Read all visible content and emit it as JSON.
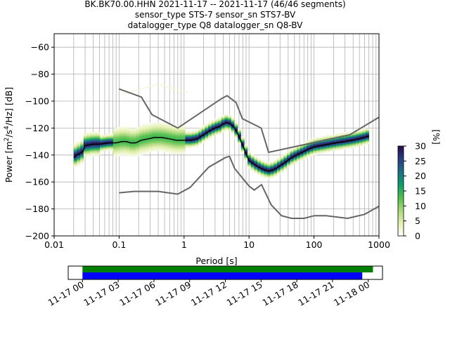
{
  "chart_data": [
    {
      "type": "heatmap",
      "title_lines": [
        "BK.BK70.00.HHN   2021-11-17 -- 2021-11-17  (46/46 segments)",
        "sensor_type STS-7 sensor_sn STS7-BV",
        "datalogger_type Q8 datalogger_sn Q8-BV"
      ],
      "xlabel": "Period [s]",
      "ylabel": "Power [m²/s⁴/Hz] [dB]",
      "ylabel_parts": {
        "prefix": "Power [m",
        "sup1": "2",
        "mid": "/s",
        "sup2": "4",
        "suffix": "/Hz] [dB]"
      },
      "x_scale": "log",
      "xlim": [
        0.01,
        1000
      ],
      "ylim": [
        -200,
        -50
      ],
      "x_ticks": [
        0.01,
        0.1,
        1,
        10,
        100,
        1000
      ],
      "x_tick_labels": [
        "0.01",
        "0.1",
        "1",
        "10",
        "100",
        "1000"
      ],
      "y_ticks": [
        -200,
        -180,
        -160,
        -140,
        -120,
        -100,
        -80,
        -60
      ],
      "y_tick_labels": [
        "−200",
        "−180",
        "−160",
        "−140",
        "−120",
        "−100",
        "−80",
        "−60"
      ],
      "grid": true,
      "colorbar": {
        "label": "[%]",
        "range": [
          0,
          30
        ],
        "ticks": [
          0,
          5,
          10,
          15,
          20,
          25,
          30
        ],
        "tick_labels": [
          "0",
          "5",
          "10",
          "15",
          "20",
          "25",
          "30"
        ],
        "colors": [
          "#ffffff",
          "#e3f0b0",
          "#a8d87c",
          "#4fbe4f",
          "#0f9c6e",
          "#1c6f86",
          "#2a3d82",
          "#2a0a4a"
        ]
      },
      "series": [
        {
          "name": "mode",
          "color": "#000000",
          "x": [
            0.02,
            0.022,
            0.025,
            0.028,
            0.03,
            0.04,
            0.05,
            0.07,
            0.09,
            0.11,
            0.13,
            0.15,
            0.18,
            0.22,
            0.28,
            0.35,
            0.45,
            0.6,
            0.75,
            1.0,
            1.3,
            1.6,
            2.0,
            2.5,
            3.0,
            3.5,
            4.0,
            4.6,
            5.2,
            6.0,
            7.0,
            8.0,
            9.0,
            10,
            12,
            14,
            17,
            20,
            24,
            28,
            35,
            45,
            60,
            80,
            100,
            130,
            170,
            220,
            300,
            400,
            500,
            600,
            700
          ],
          "y": [
            -142,
            -140,
            -139,
            -137,
            -133,
            -132,
            -132,
            -131,
            -131,
            -130,
            -130,
            -131,
            -131,
            -129,
            -128,
            -127,
            -127,
            -128,
            -129,
            -129,
            -129,
            -128,
            -125,
            -122,
            -120,
            -119,
            -117,
            -116,
            -117,
            -120,
            -126,
            -133,
            -139,
            -144,
            -147,
            -149,
            -151,
            -152,
            -151,
            -149,
            -146,
            -142,
            -139,
            -136,
            -134,
            -133,
            -132,
            -131,
            -130,
            -129,
            -128,
            -127,
            -126
          ]
        },
        {
          "name": "NHNM",
          "color": "#666666",
          "x": [
            0.1,
            0.22,
            0.32,
            0.8,
            3.8,
            4.6,
            6.3,
            7.9,
            15.4,
            20,
            354.8,
            1000
          ],
          "y": [
            -91,
            -97,
            -110,
            -120,
            -98,
            -96,
            -101,
            -113,
            -120,
            -138,
            -125,
            -112
          ]
        },
        {
          "name": "NLNM",
          "color": "#666666",
          "x": [
            0.1,
            0.17,
            0.4,
            0.8,
            1.24,
            2.4,
            4.3,
            5.0,
            6.0,
            10,
            12,
            15.6,
            21.9,
            31.6,
            45,
            70,
            101,
            154,
            328,
            600,
            1000
          ],
          "y": [
            -168,
            -167,
            -167,
            -169,
            -164,
            -149,
            -142,
            -141,
            -150,
            -163,
            -166,
            -162,
            -177,
            -185,
            -187,
            -187,
            -185,
            -185,
            -187,
            -184,
            -178
          ]
        }
      ]
    },
    {
      "type": "timeline",
      "x_tick_labels": [
        "11-17 00",
        "11-17 03",
        "11-17 06",
        "11-17 09",
        "11-17 12",
        "11-17 15",
        "11-17 18",
        "11-17 21",
        "11-18 00"
      ],
      "x_hours": [
        0,
        3,
        6,
        9,
        12,
        15,
        18,
        21,
        24
      ],
      "xlim_hours": [
        -1.2,
        25.2
      ],
      "bars": [
        {
          "name": "data_available",
          "color": "#008000",
          "start_hour": 0,
          "end_hour": 24.4
        },
        {
          "name": "psd_used",
          "color": "#0000ff",
          "start_hour": 0,
          "end_hour": 23.5
        }
      ]
    }
  ]
}
